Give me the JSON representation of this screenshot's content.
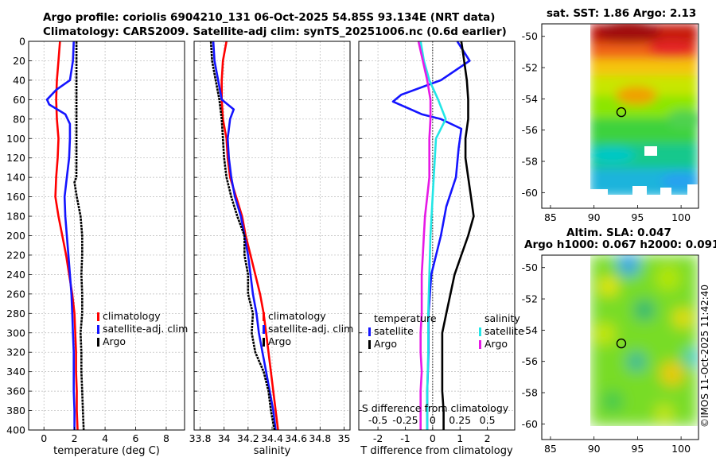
{
  "header": {
    "line1": "Argo profile: coriolis 6904210_131 06-Oct-2025 54.85S 93.134E (NRT data)",
    "line2": "Climatology: CARS2009. Satellite-adj clim: synTS_20251006.nc (0.6d earlier)"
  },
  "map_sst": {
    "title": "sat. SST: 1.86 Argo: 2.13"
  },
  "map_sla": {
    "title1": "Altim. SLA: 0.047",
    "title2": "Argo h1000: 0.067 h2000: 0.091"
  },
  "credit": "©IMOS 11-Oct-2025 11:42:40",
  "colors": {
    "climatology": "#ff0000",
    "satellite": "#1414ff",
    "argo": "#000000",
    "sat_salinity": "#22e6e6",
    "argo_salinity": "#e619e6",
    "grid": "#b8b8b8"
  },
  "chart_data": [
    {
      "type": "line",
      "name": "temperature-profile",
      "xlabel": "temperature (deg C)",
      "xlim": [
        -1,
        9.2
      ],
      "ylim": [
        400,
        0
      ],
      "xticks": [
        0,
        2,
        4,
        6,
        8
      ],
      "yticks": [
        0,
        20,
        40,
        60,
        80,
        100,
        120,
        140,
        160,
        180,
        200,
        220,
        240,
        260,
        280,
        300,
        320,
        340,
        360,
        380,
        400
      ],
      "legend": [
        "climatology",
        "satellite-adj. clim",
        "Argo"
      ],
      "series": [
        {
          "name": "climatology",
          "color": "#ff0000",
          "depth": [
            0,
            20,
            40,
            60,
            80,
            100,
            120,
            140,
            160,
            180,
            200,
            220,
            240,
            260,
            280,
            300,
            320,
            340,
            360,
            380,
            400
          ],
          "values": [
            1.05,
            0.95,
            0.85,
            0.8,
            0.85,
            0.95,
            0.9,
            0.8,
            0.75,
            0.95,
            1.2,
            1.45,
            1.65,
            1.85,
            2.0,
            2.05,
            2.1,
            2.1,
            2.15,
            2.15,
            2.2
          ]
        },
        {
          "name": "satellite-adj. clim",
          "color": "#1414ff",
          "depth": [
            0,
            20,
            40,
            50,
            60,
            65,
            75,
            85,
            100,
            120,
            140,
            160,
            180,
            200,
            220,
            240,
            260,
            280,
            300,
            320,
            340,
            360,
            380,
            400
          ],
          "values": [
            1.95,
            1.9,
            1.7,
            0.8,
            0.2,
            0.35,
            1.4,
            1.7,
            1.7,
            1.65,
            1.5,
            1.35,
            1.4,
            1.5,
            1.6,
            1.7,
            1.8,
            1.85,
            1.9,
            1.95,
            1.95,
            1.95,
            2.0,
            2.0
          ]
        },
        {
          "name": "Argo",
          "color": "#000000",
          "depth": [
            0,
            20,
            40,
            60,
            80,
            100,
            120,
            140,
            145,
            160,
            180,
            200,
            220,
            240,
            260,
            280,
            300,
            320,
            340,
            360,
            380,
            400
          ],
          "values": [
            2.13,
            2.13,
            2.13,
            2.13,
            2.13,
            2.13,
            2.13,
            2.12,
            2.0,
            2.15,
            2.4,
            2.5,
            2.5,
            2.45,
            2.5,
            2.5,
            2.4,
            2.45,
            2.45,
            2.5,
            2.55,
            2.6
          ]
        }
      ]
    },
    {
      "type": "line",
      "name": "salinity-profile",
      "xlabel": "salinity",
      "xlim": [
        33.75,
        35.05
      ],
      "ylim": [
        400,
        0
      ],
      "xticks": [
        33.8,
        34,
        34.2,
        34.4,
        34.6,
        34.8,
        35
      ],
      "legend": [
        "climatology",
        "satellite-adj. clim",
        "Argo"
      ],
      "series": [
        {
          "name": "climatology",
          "color": "#ff0000",
          "depth": [
            0,
            20,
            40,
            60,
            80,
            100,
            120,
            140,
            160,
            180,
            200,
            220,
            240,
            260,
            280,
            300,
            320,
            340,
            360,
            380,
            400
          ],
          "values": [
            34.02,
            33.99,
            33.98,
            33.98,
            33.99,
            34.02,
            34.03,
            34.05,
            34.1,
            34.15,
            34.18,
            34.22,
            34.26,
            34.3,
            34.33,
            34.35,
            34.37,
            34.39,
            34.41,
            34.43,
            34.45
          ]
        },
        {
          "name": "satellite-adj. clim",
          "color": "#1414ff",
          "depth": [
            0,
            20,
            40,
            60,
            70,
            80,
            100,
            120,
            140,
            160,
            180,
            200,
            220,
            240,
            260,
            280,
            300,
            320,
            340,
            360,
            380,
            400
          ],
          "values": [
            33.91,
            33.92,
            33.95,
            33.98,
            34.08,
            34.05,
            34.03,
            34.04,
            34.06,
            34.09,
            34.14,
            34.17,
            34.2,
            34.22,
            34.24,
            34.27,
            34.29,
            34.32,
            34.35,
            34.38,
            34.41,
            34.43
          ]
        },
        {
          "name": "Argo",
          "color": "#000000",
          "depth": [
            0,
            20,
            40,
            60,
            80,
            100,
            120,
            140,
            160,
            180,
            200,
            220,
            240,
            260,
            280,
            300,
            320,
            340,
            360,
            380,
            400
          ],
          "values": [
            33.89,
            33.9,
            33.93,
            33.96,
            33.98,
            33.99,
            34.0,
            34.02,
            34.06,
            34.11,
            34.17,
            34.17,
            34.2,
            34.2,
            34.24,
            34.23,
            34.26,
            34.33,
            34.37,
            34.39,
            34.42
          ]
        }
      ]
    },
    {
      "type": "line",
      "name": "difference-profile",
      "xlabel": "T difference from climatology",
      "xlabel_top": "S difference from climatology",
      "xlim": [
        -2.7,
        3.0
      ],
      "ylim": [
        400,
        0
      ],
      "xticks": [
        -2,
        -1,
        0,
        1,
        2
      ],
      "sticks": [
        -0.5,
        -0.25,
        0,
        0.25,
        0.5
      ],
      "sticks_text": [
        "-0.5",
        "-0.25",
        "0",
        "0.25",
        "0.5"
      ],
      "s_scale": 4,
      "legend_left_title": "temperature",
      "legend_right_title": "salinity",
      "legend": [
        "satellite",
        "Argo",
        "satellite",
        "Argo"
      ],
      "series": [
        {
          "name": "T satellite",
          "color": "#1414ff",
          "depth": [
            0,
            20,
            40,
            55,
            62,
            75,
            80,
            90,
            110,
            140,
            170,
            200,
            240,
            280,
            320,
            360,
            400
          ],
          "values": [
            0.9,
            1.35,
            0.3,
            -1.15,
            -1.45,
            -0.4,
            0.3,
            1.05,
            0.95,
            0.85,
            0.5,
            0.3,
            -0.05,
            -0.15,
            -0.15,
            -0.2,
            -0.2
          ]
        },
        {
          "name": "T Argo",
          "color": "#000000",
          "depth": [
            0,
            20,
            40,
            60,
            80,
            100,
            120,
            140,
            160,
            180,
            200,
            220,
            240,
            260,
            280,
            300,
            320,
            340,
            360,
            380,
            400
          ],
          "values": [
            1.05,
            1.15,
            1.25,
            1.3,
            1.3,
            1.2,
            1.2,
            1.3,
            1.4,
            1.5,
            1.3,
            1.05,
            0.8,
            0.65,
            0.5,
            0.35,
            0.35,
            0.35,
            0.35,
            0.4,
            0.4
          ]
        },
        {
          "name": "S satellite",
          "color": "#22e6e6",
          "depth": [
            0,
            20,
            40,
            60,
            80,
            100,
            120,
            140,
            160,
            200,
            240,
            280,
            320,
            360,
            400
          ],
          "values": [
            -0.11,
            -0.08,
            -0.03,
            0.05,
            0.12,
            0.03,
            0.02,
            0.01,
            0.0,
            -0.02,
            -0.03,
            -0.04,
            -0.04,
            -0.05,
            -0.05
          ]
        },
        {
          "name": "S Argo",
          "color": "#e619e6",
          "depth": [
            0,
            20,
            40,
            60,
            80,
            100,
            120,
            140,
            160,
            180,
            200,
            220,
            240,
            260,
            280,
            300,
            320,
            340,
            360,
            380,
            400
          ],
          "values": [
            -0.13,
            -0.09,
            -0.05,
            -0.02,
            -0.02,
            -0.03,
            -0.03,
            -0.03,
            -0.05,
            -0.07,
            -0.08,
            -0.09,
            -0.1,
            -0.1,
            -0.1,
            -0.11,
            -0.11,
            -0.1,
            -0.11,
            -0.11,
            -0.11
          ]
        }
      ]
    },
    {
      "type": "heatmap",
      "name": "sst-map",
      "title": "sat. SST: 1.86 Argo: 2.13",
      "xlim": [
        84,
        102
      ],
      "ylim": [
        -61,
        -49.2
      ],
      "xticks": [
        85,
        90,
        95,
        100
      ],
      "yticks": [
        -50,
        -52,
        -54,
        -56,
        -58,
        -60
      ],
      "data_extent_lon": [
        90,
        102
      ],
      "data_extent_lat": [
        -60,
        -49.2
      ],
      "marker": {
        "lon": 93.134,
        "lat": -54.85
      }
    },
    {
      "type": "heatmap",
      "name": "sla-map",
      "title": "Altim. SLA: 0.047",
      "xlim": [
        84,
        102
      ],
      "ylim": [
        -61,
        -49.2
      ],
      "xticks": [
        85,
        90,
        95,
        100
      ],
      "yticks": [
        -50,
        -52,
        -54,
        -56,
        -58,
        -60
      ],
      "data_extent_lon": [
        90,
        102
      ],
      "data_extent_lat": [
        -60,
        -49.2
      ],
      "marker": {
        "lon": 93.134,
        "lat": -54.85
      }
    }
  ]
}
